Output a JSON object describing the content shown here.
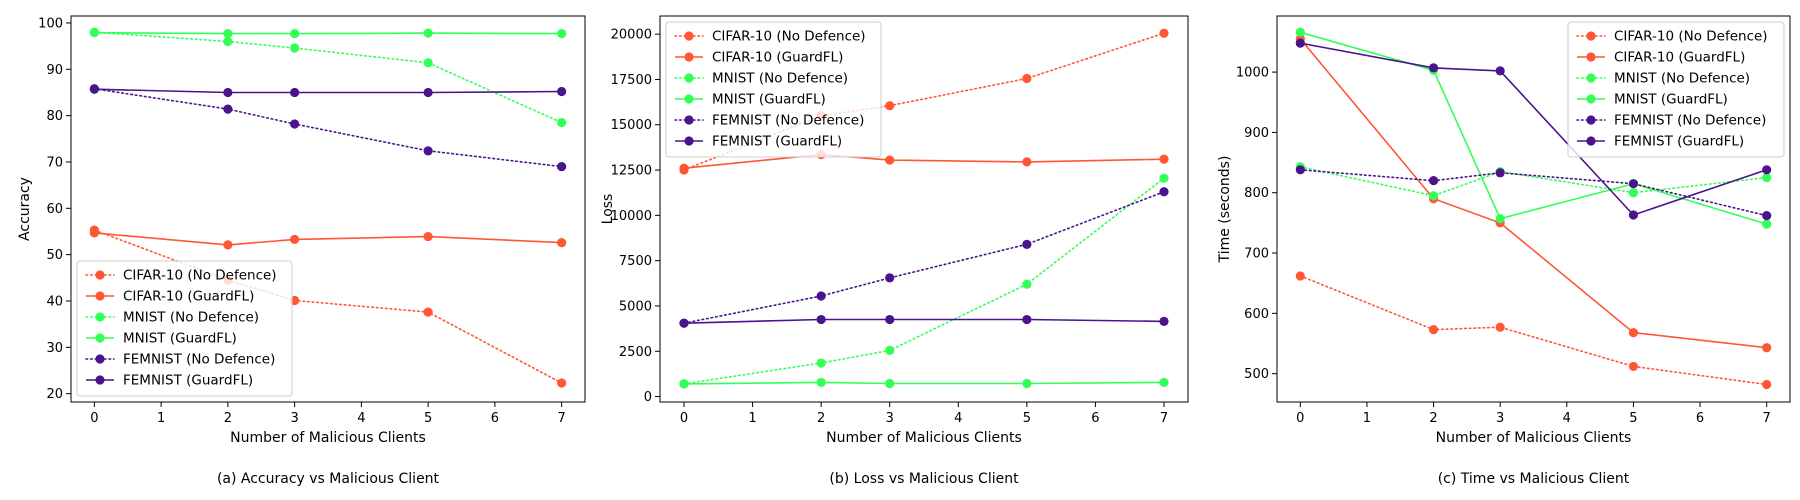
{
  "colors": {
    "cifar": "#FF5733",
    "mnist": "#33FF57",
    "femnist": "#4A148C"
  },
  "chart_data": [
    {
      "type": "line",
      "caption": "(a) Accuracy vs Malicious Client",
      "xlabel": "Number of Malicious Clients",
      "ylabel": "Accuracy",
      "xlim": [
        -0.35,
        7.35
      ],
      "ylim": [
        18.2,
        101.5
      ],
      "xticks": [
        0,
        1,
        2,
        3,
        4,
        5,
        6,
        7
      ],
      "yticks": [
        20,
        30,
        40,
        50,
        60,
        70,
        80,
        90,
        100
      ],
      "legend_position": "lower-left",
      "x": [
        0,
        2,
        3,
        5,
        7
      ],
      "series": [
        {
          "name": "CIFAR-10 (No Defence)",
          "color": "cifar",
          "style": "dotted",
          "values": [
            55.3,
            44.5,
            40.1,
            37.6,
            22.3
          ]
        },
        {
          "name": "CIFAR-10 (GuardFL)",
          "color": "cifar",
          "style": "solid",
          "values": [
            54.7,
            52.1,
            53.3,
            53.9,
            52.6
          ]
        },
        {
          "name": "MNIST (No Defence)",
          "color": "mnist",
          "style": "dotted",
          "values": [
            98.0,
            96.0,
            94.6,
            91.4,
            78.5
          ]
        },
        {
          "name": "MNIST (GuardFL)",
          "color": "mnist",
          "style": "solid",
          "values": [
            97.9,
            97.7,
            97.7,
            97.8,
            97.7
          ]
        },
        {
          "name": "FEMNIST (No Defence)",
          "color": "femnist",
          "style": "dotted",
          "values": [
            85.8,
            81.4,
            78.2,
            72.4,
            69.0
          ]
        },
        {
          "name": "FEMNIST (GuardFL)",
          "color": "femnist",
          "style": "solid",
          "values": [
            85.7,
            85.0,
            85.0,
            85.0,
            85.2
          ]
        }
      ]
    },
    {
      "type": "line",
      "caption": "(b) Loss vs Malicious Client",
      "xlabel": "Number of Malicious Clients",
      "ylabel": "Loss",
      "xlim": [
        -0.35,
        7.35
      ],
      "ylim": [
        -300,
        21000
      ],
      "xticks": [
        0,
        1,
        2,
        3,
        4,
        5,
        6,
        7
      ],
      "yticks": [
        0,
        2500,
        5000,
        7500,
        10000,
        12500,
        15000,
        17500,
        20000
      ],
      "legend_position": "upper-left",
      "x": [
        0,
        2,
        3,
        5,
        7
      ],
      "series": [
        {
          "name": "CIFAR-10 (No Defence)",
          "color": "cifar",
          "style": "dotted",
          "values": [
            12500,
            15500,
            16050,
            17550,
            20050
          ]
        },
        {
          "name": "CIFAR-10 (GuardFL)",
          "color": "cifar",
          "style": "solid",
          "values": [
            12600,
            13350,
            13050,
            12950,
            13100
          ]
        },
        {
          "name": "MNIST (No Defence)",
          "color": "mnist",
          "style": "dotted",
          "values": [
            700,
            1850,
            2550,
            6200,
            12050
          ]
        },
        {
          "name": "MNIST (GuardFL)",
          "color": "mnist",
          "style": "solid",
          "values": [
            700,
            780,
            720,
            720,
            780
          ]
        },
        {
          "name": "FEMNIST (No Defence)",
          "color": "femnist",
          "style": "dotted",
          "values": [
            4050,
            5550,
            6550,
            8400,
            11300
          ]
        },
        {
          "name": "FEMNIST (GuardFL)",
          "color": "femnist",
          "style": "solid",
          "values": [
            4050,
            4250,
            4250,
            4250,
            4150
          ]
        }
      ]
    },
    {
      "type": "line",
      "caption": "(c) Time vs Malicious Client",
      "xlabel": "Number of Malicious Clients",
      "ylabel": "Time (seconds)",
      "xlim": [
        -0.35,
        7.35
      ],
      "ylim": [
        453,
        1093
      ],
      "xticks": [
        0,
        1,
        2,
        3,
        4,
        5,
        6,
        7
      ],
      "yticks": [
        500,
        600,
        700,
        800,
        900,
        1000
      ],
      "legend_position": "upper-right",
      "x": [
        0,
        2,
        3,
        5,
        7
      ],
      "series": [
        {
          "name": "CIFAR-10 (No Defence)",
          "color": "cifar",
          "style": "dotted",
          "values": [
            662,
            573,
            577,
            512,
            482
          ]
        },
        {
          "name": "CIFAR-10 (GuardFL)",
          "color": "cifar",
          "style": "solid",
          "values": [
            1055,
            790,
            750,
            568,
            543
          ]
        },
        {
          "name": "MNIST (No Defence)",
          "color": "mnist",
          "style": "dotted",
          "values": [
            843,
            795,
            835,
            800,
            825
          ]
        },
        {
          "name": "MNIST (GuardFL)",
          "color": "mnist",
          "style": "solid",
          "values": [
            1066,
            1003,
            757,
            815,
            748
          ]
        },
        {
          "name": "FEMNIST (No Defence)",
          "color": "femnist",
          "style": "dotted",
          "values": [
            838,
            820,
            833,
            815,
            762
          ]
        },
        {
          "name": "FEMNIST (GuardFL)",
          "color": "femnist",
          "style": "solid",
          "values": [
            1048,
            1007,
            1002,
            763,
            838
          ]
        }
      ]
    }
  ]
}
